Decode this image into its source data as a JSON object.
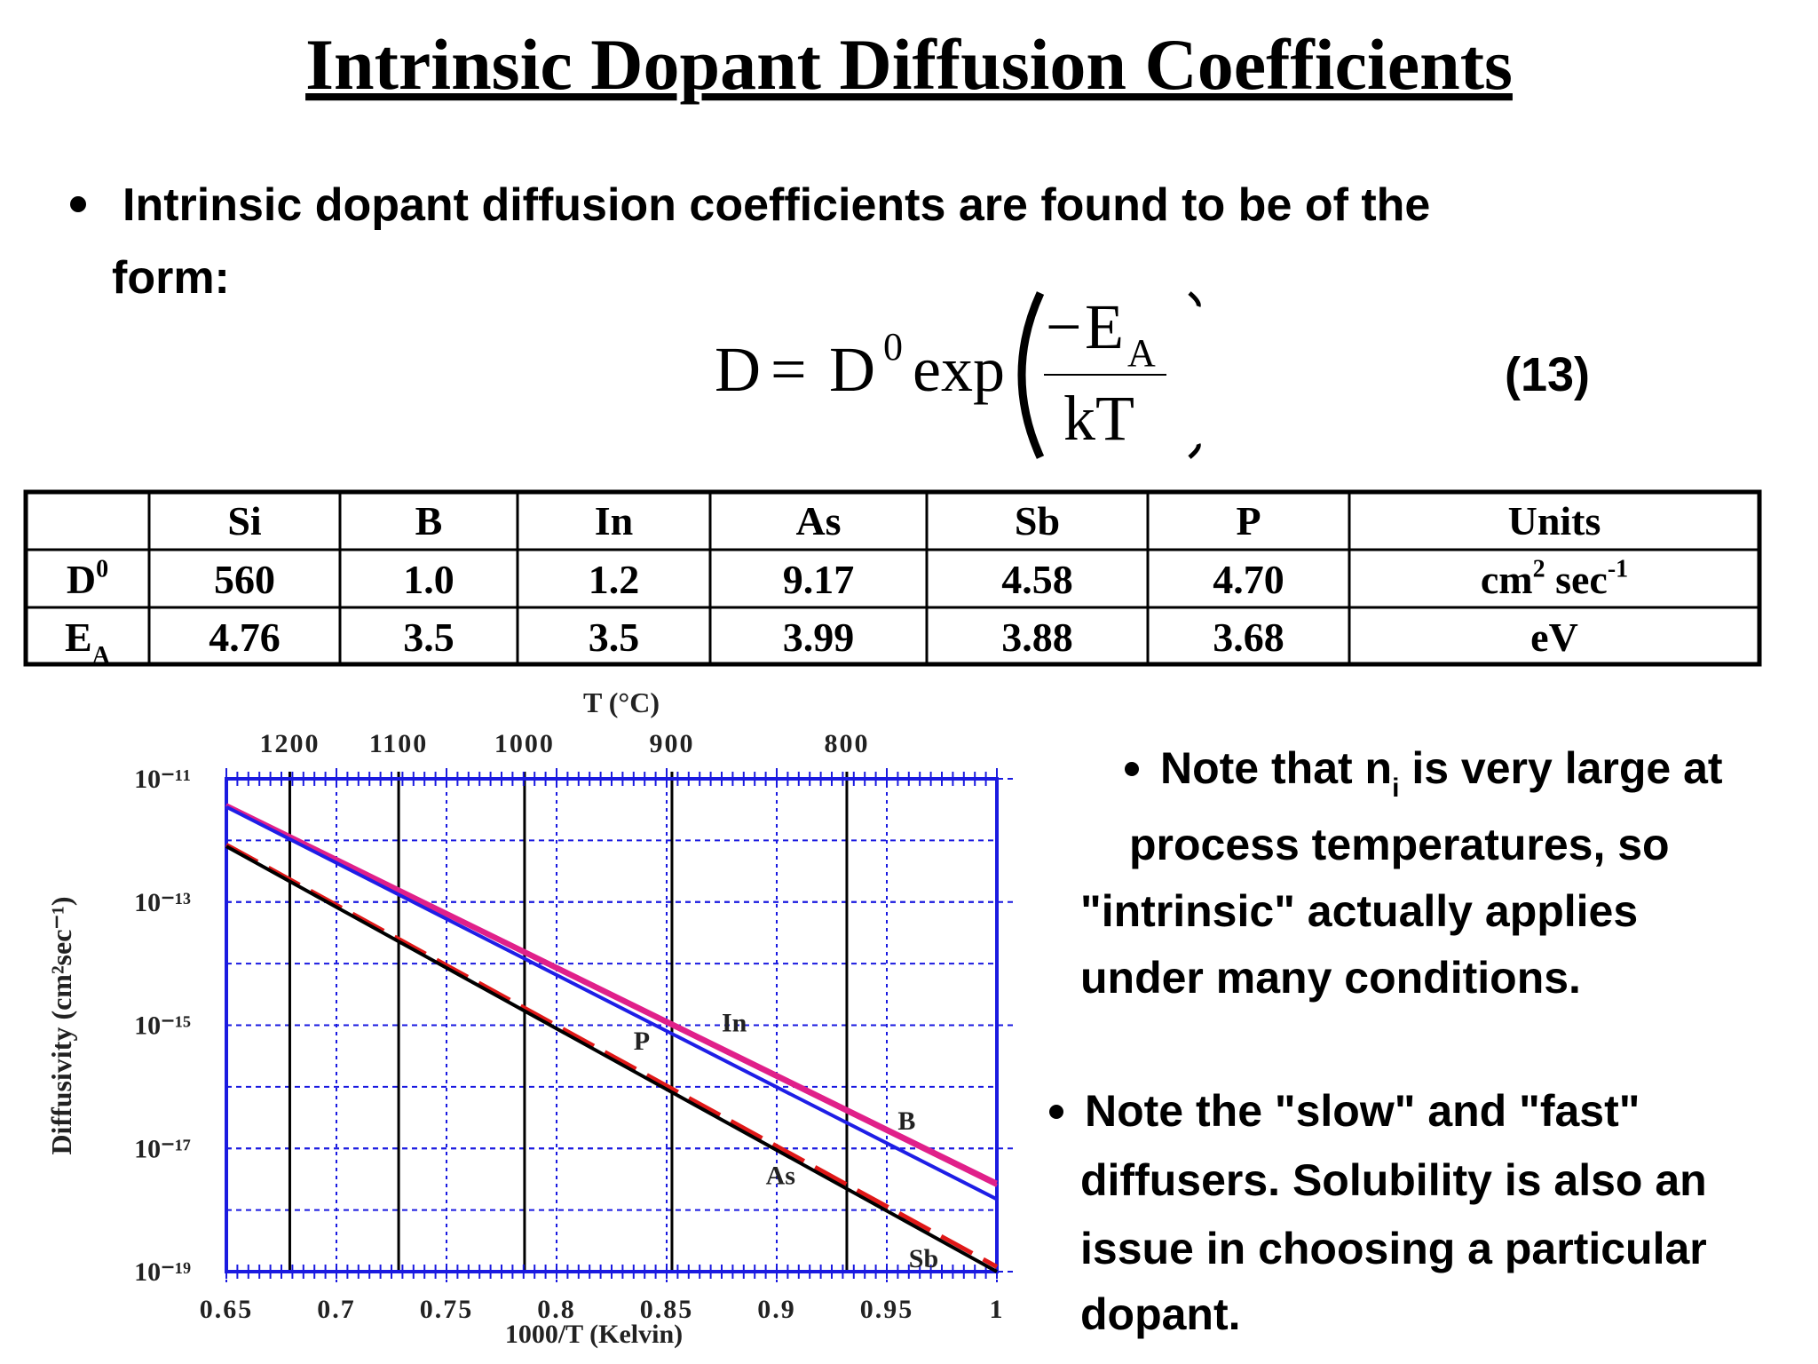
{
  "title": "Intrinsic Dopant Diffusion Coefficients",
  "bullet": [
    "Intrinsic dopant diffusion coefficients are found to be of the",
    "form:"
  ],
  "equation": {
    "lhs": "D",
    "equals": "=",
    "rhs": "D",
    "rhs_sup": "0",
    "func": "exp",
    "minus": "−",
    "numerator": "E",
    "numerator_sub": "A",
    "denominator": "kT",
    "number": "(13)"
  },
  "table": {
    "header": [
      "Si",
      "B",
      "In",
      "As",
      "Sb",
      "P",
      "Units"
    ],
    "rows": [
      {
        "label": [
          "D",
          "0"
        ],
        "label_style": "sup",
        "cells": [
          "560",
          "1.0",
          "1.2",
          "9.17",
          "4.58",
          "4.70"
        ],
        "unit": [
          "cm",
          "2",
          " sec",
          "-1"
        ]
      },
      {
        "label": [
          "E",
          "A"
        ],
        "label_style": "sub",
        "cells": [
          "4.76",
          "3.5",
          "3.5",
          "3.99",
          "3.88",
          "3.68"
        ],
        "unit": [
          "eV"
        ]
      }
    ]
  },
  "notes": [
    [
      [
        "Note that n",
        "i",
        " is very large at"
      ],
      [
        "process temperatures, so"
      ],
      [
        "\"intrinsic\" actually applies"
      ],
      [
        "under many conditions."
      ]
    ],
    [
      [
        "Note the \"slow\" and \"fast\""
      ],
      [
        "diffusers. Solubility is also an"
      ],
      [
        "issue in choosing a particular"
      ],
      [
        "dopant."
      ]
    ]
  ],
  "chart_data": {
    "type": "line",
    "x_label": "1000/T    (Kelvin)",
    "y_label": "Diffusivity  (cm²sec⁻¹)",
    "top_label": "T (°C)",
    "top_ticks": [
      1200,
      1100,
      1000,
      900,
      800
    ],
    "log_y": true,
    "grid": true,
    "xlim": [
      0.65,
      1
    ],
    "ylim": [
      1e-19,
      1e-11
    ],
    "xticks": [
      0.65,
      0.7,
      0.75,
      0.8,
      0.85,
      0.9,
      0.95,
      1
    ],
    "yticks": [
      {
        "value": 1e-11,
        "label": "10⁻¹¹"
      },
      {
        "value": 1e-13,
        "label": "10⁻¹³"
      },
      {
        "value": 1e-15,
        "label": "10⁻¹⁵"
      },
      {
        "value": 1e-17,
        "label": "10⁻¹⁷"
      },
      {
        "value": 1e-19,
        "label": "10⁻¹⁹"
      }
    ],
    "x": [
      0.65,
      1
    ],
    "series": [
      {
        "name": "In",
        "color": "#e0208a",
        "style": "solid",
        "values": [
          3.8e-12,
          2.8e-18
        ]
      },
      {
        "name": "B",
        "color": "#e0208a",
        "style": "solid",
        "values": [
          3.5e-12,
          2.5e-18
        ]
      },
      {
        "name": "P",
        "color": "#1e1ee6",
        "style": "solid",
        "values": [
          3.5e-12,
          1.5e-18
        ]
      },
      {
        "name": "Sb",
        "color": "#e01818",
        "style": "dashed",
        "values": [
          8.5e-13,
          1.2e-19
        ]
      },
      {
        "name": "As",
        "color": "#000000",
        "style": "solid",
        "values": [
          8e-13,
          1e-19
        ]
      }
    ]
  }
}
